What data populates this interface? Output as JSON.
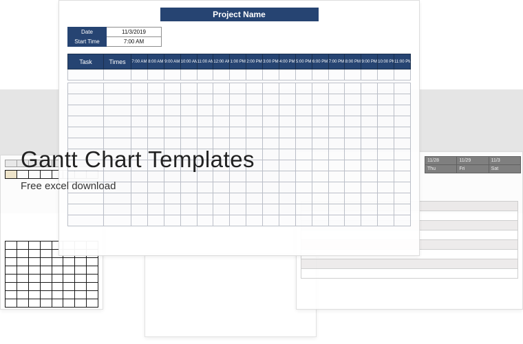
{
  "heading": "Gantt Chart Templates",
  "subheading": "Free excel download",
  "main_sheet": {
    "title": "Project Name",
    "meta": {
      "date_label": "Date",
      "date_value": "11/3/2019",
      "start_label": "Start Time",
      "start_value": "7:00 AM"
    },
    "columns": {
      "task": "Task",
      "times": "Times",
      "hours": [
        "7:00 AM",
        "8:00 AM",
        "9:00 AM",
        "10:00 AM",
        "11:00 AM",
        "12:00 AM",
        "1:00 PM",
        "2:00 PM",
        "3:00 PM",
        "4:00 PM",
        "5:00 PM",
        "6:00 PM",
        "7:00 PM",
        "8:00 PM",
        "9:00 PM",
        "10:00 PM",
        "11:00 PM"
      ]
    },
    "row_count": 14,
    "colors": {
      "header_bg": "#1b3a6b",
      "header_border": "#0f2545",
      "cell_border": "#b8bcc6",
      "cell_bg": "#fcfcfd"
    }
  },
  "bg2_sheet": {
    "date_headers": [
      "11/28",
      "11/29",
      "11/3"
    ],
    "day_headers": [
      "Thu",
      "Fri",
      "Sat"
    ],
    "row_count": 8
  },
  "overlay": {
    "band_color": "#e5e5e5"
  }
}
